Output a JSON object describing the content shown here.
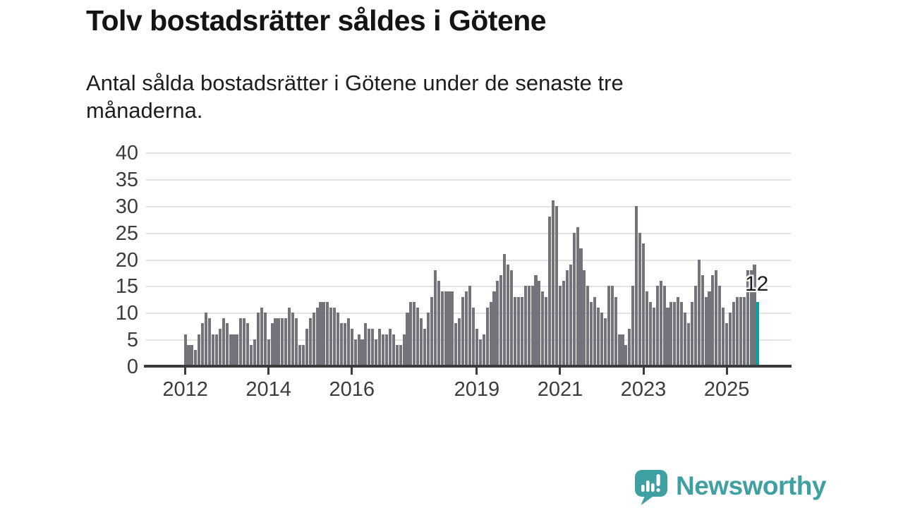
{
  "header": {
    "title": "Tolv bostadsrätter såldes i Götene",
    "subtitle_line1": "Antal sålda bostadsrätter i Götene under de senaste tre",
    "subtitle_line2": "månaderna."
  },
  "chart_data": {
    "type": "bar",
    "title": "Tolv bostadsrätter såldes i Götene",
    "subtitle": "Antal sålda bostadsrätter i Götene under de senaste tre månaderna.",
    "xlabel": "",
    "ylabel": "",
    "ylim": [
      0,
      40
    ],
    "grid": "horizontal",
    "y_ticks": [
      0,
      5,
      10,
      15,
      20,
      25,
      30,
      35,
      40
    ],
    "x_ticks": [
      {
        "label": "2012",
        "month_index": 0
      },
      {
        "label": "2014",
        "month_index": 24
      },
      {
        "label": "2016",
        "month_index": 48
      },
      {
        "label": "2019",
        "month_index": 84
      },
      {
        "label": "2021",
        "month_index": 108
      },
      {
        "label": "2023",
        "month_index": 132
      },
      {
        "label": "2025",
        "month_index": 156
      }
    ],
    "start_year": 2012,
    "frequency": "monthly",
    "values": [
      6,
      4,
      4,
      3,
      6,
      8,
      10,
      9,
      6,
      6,
      7,
      9,
      8,
      6,
      6,
      6,
      9,
      9,
      8,
      4,
      5,
      10,
      11,
      10,
      5,
      8,
      9,
      9,
      9,
      9,
      11,
      10,
      9,
      4,
      4,
      7,
      9,
      10,
      11,
      12,
      12,
      12,
      11,
      11,
      10,
      8,
      8,
      9,
      7,
      5,
      6,
      5,
      8,
      7,
      7,
      5,
      7,
      6,
      6,
      7,
      6,
      4,
      4,
      6,
      10,
      12,
      12,
      11,
      9,
      7,
      10,
      13,
      18,
      16,
      14,
      14,
      14,
      14,
      8,
      9,
      13,
      14,
      15,
      11,
      7,
      5,
      6,
      11,
      12,
      14,
      16,
      17,
      21,
      19,
      18,
      13,
      13,
      13,
      15,
      15,
      15,
      17,
      16,
      14,
      13,
      28,
      31,
      30,
      15,
      16,
      18,
      19,
      25,
      26,
      22,
      18,
      15,
      12,
      13,
      11,
      10,
      9,
      15,
      15,
      13,
      6,
      6,
      4,
      7,
      15,
      30,
      25,
      23,
      14,
      12,
      11,
      15,
      16,
      15,
      11,
      12,
      12,
      13,
      12,
      10,
      8,
      12,
      15,
      20,
      17,
      13,
      14,
      17,
      18,
      15,
      11,
      8,
      10,
      12,
      13,
      13,
      13,
      18,
      18,
      19,
      12
    ],
    "highlight_last": true,
    "annotation": {
      "text": "12",
      "value": 12
    },
    "colors": {
      "bar": "#73737b",
      "highlight": "#00a3a3",
      "gridline": "#e3e3e3",
      "axis": "#3b3b3b",
      "tick_label": "#3c3c3c",
      "text": "#1e1e1e"
    }
  },
  "logo": {
    "name": "Newsworthy",
    "color": "#3fa0a2",
    "icon": "speech-bubble-bar-chart-exclamation"
  }
}
